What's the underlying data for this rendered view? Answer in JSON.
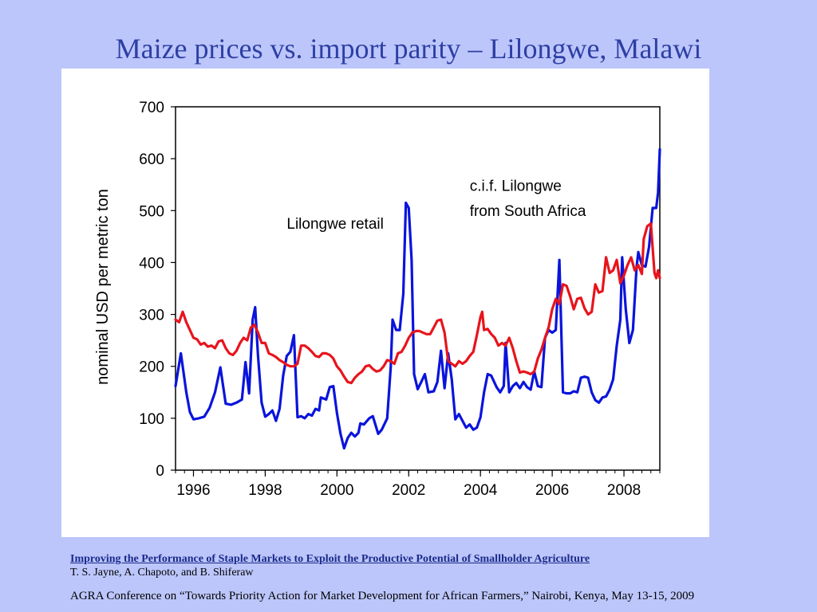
{
  "slide": {
    "title": "Maize prices vs. import parity – Lilongwe, Malawi",
    "footer_citation": "Improving the Performance of Staple Markets to Exploit the Productive Potential of Smallholder Agriculture",
    "footer_authors": "T. S. Jayne, A. Chapoto, and B. Shiferaw",
    "footer_conference": "AGRA Conference on “Towards Priority Action for Market Development for African Farmers,” Nairobi, Kenya, May 13-15, 2009"
  },
  "chart_data": {
    "type": "line",
    "title": "",
    "xlabel": "",
    "ylabel": "nominal USD per metric ton",
    "xlim": [
      1995.5,
      2008.67
    ],
    "ylim": [
      0,
      700
    ],
    "y_ticks": [
      0,
      100,
      200,
      300,
      400,
      500,
      600,
      700
    ],
    "y_tick_labels": [
      "0",
      "100",
      "200",
      "300",
      "400",
      "500",
      "600",
      "700"
    ],
    "x_ticks": [
      1996,
      1998,
      2000,
      2002,
      2004,
      2006,
      2008
    ],
    "x_tick_labels": [
      "1996",
      "1998",
      "2000",
      "2002",
      "2004",
      "2006",
      "2008"
    ],
    "grid": false,
    "legend": "none",
    "annotations": [
      {
        "text": "Lilongwe retail",
        "x": 1998.6,
        "y": 465
      },
      {
        "text": "c.i.f. Lilongwe",
        "x": 2003.7,
        "y": 538
      },
      {
        "text": "from South Africa",
        "x": 2003.7,
        "y": 490
      }
    ],
    "series": [
      {
        "color": "#0a14dc",
        "points": [
          [
            1995.5,
            162
          ],
          [
            1995.65,
            225
          ],
          [
            1995.8,
            150
          ],
          [
            1995.9,
            112
          ],
          [
            1996.0,
            98
          ],
          [
            1996.15,
            100
          ],
          [
            1996.3,
            103
          ],
          [
            1996.45,
            120
          ],
          [
            1996.6,
            150
          ],
          [
            1996.75,
            198
          ],
          [
            1996.9,
            128
          ],
          [
            1997.05,
            126
          ],
          [
            1997.2,
            130
          ],
          [
            1997.35,
            136
          ],
          [
            1997.45,
            208
          ],
          [
            1997.55,
            148
          ],
          [
            1997.65,
            290
          ],
          [
            1997.72,
            314
          ],
          [
            1997.8,
            220
          ],
          [
            1997.9,
            130
          ],
          [
            1998.0,
            103
          ],
          [
            1998.1,
            108
          ],
          [
            1998.2,
            115
          ],
          [
            1998.3,
            95
          ],
          [
            1998.4,
            118
          ],
          [
            1998.5,
            182
          ],
          [
            1998.6,
            220
          ],
          [
            1998.7,
            228
          ],
          [
            1998.8,
            260
          ],
          [
            1998.9,
            102
          ],
          [
            1999.0,
            104
          ],
          [
            1999.1,
            100
          ],
          [
            1999.2,
            108
          ],
          [
            1999.3,
            105
          ],
          [
            1999.4,
            118
          ],
          [
            1999.5,
            115
          ],
          [
            1999.55,
            140
          ],
          [
            1999.7,
            136
          ],
          [
            1999.8,
            160
          ],
          [
            1999.9,
            162
          ],
          [
            2000.0,
            110
          ],
          [
            2000.1,
            70
          ],
          [
            2000.2,
            42
          ],
          [
            2000.3,
            62
          ],
          [
            2000.4,
            72
          ],
          [
            2000.5,
            65
          ],
          [
            2000.6,
            72
          ],
          [
            2000.65,
            90
          ],
          [
            2000.75,
            88
          ],
          [
            2000.9,
            100
          ],
          [
            2001.0,
            104
          ],
          [
            2001.15,
            70
          ],
          [
            2001.25,
            78
          ],
          [
            2001.4,
            100
          ],
          [
            2001.5,
            200
          ],
          [
            2001.55,
            290
          ],
          [
            2001.65,
            270
          ],
          [
            2001.75,
            270
          ],
          [
            2001.85,
            340
          ],
          [
            2001.92,
            515
          ],
          [
            2002.0,
            505
          ],
          [
            2002.08,
            405
          ],
          [
            2002.15,
            185
          ],
          [
            2002.25,
            156
          ],
          [
            2002.35,
            170
          ],
          [
            2002.45,
            185
          ],
          [
            2002.55,
            150
          ],
          [
            2002.7,
            152
          ],
          [
            2002.8,
            170
          ],
          [
            2002.9,
            230
          ],
          [
            2003.0,
            158
          ],
          [
            2003.1,
            225
          ],
          [
            2003.2,
            175
          ],
          [
            2003.3,
            98
          ],
          [
            2003.4,
            108
          ],
          [
            2003.5,
            95
          ],
          [
            2003.6,
            82
          ],
          [
            2003.7,
            88
          ],
          [
            2003.8,
            78
          ],
          [
            2003.9,
            82
          ],
          [
            2004.0,
            102
          ],
          [
            2004.1,
            150
          ],
          [
            2004.2,
            185
          ],
          [
            2004.3,
            182
          ],
          [
            2004.45,
            160
          ],
          [
            2004.55,
            150
          ],
          [
            2004.65,
            162
          ],
          [
            2004.7,
            245
          ],
          [
            2004.8,
            150
          ],
          [
            2004.9,
            162
          ],
          [
            2005.0,
            168
          ],
          [
            2005.1,
            158
          ],
          [
            2005.2,
            170
          ],
          [
            2005.3,
            160
          ],
          [
            2005.4,
            155
          ],
          [
            2005.5,
            190
          ],
          [
            2005.6,
            162
          ],
          [
            2005.7,
            160
          ],
          [
            2005.8,
            255
          ],
          [
            2005.9,
            270
          ],
          [
            2006.0,
            265
          ],
          [
            2006.1,
            270
          ],
          [
            2006.2,
            405
          ],
          [
            2006.3,
            150
          ],
          [
            2006.4,
            148
          ],
          [
            2006.5,
            148
          ],
          [
            2006.6,
            152
          ],
          [
            2006.7,
            150
          ],
          [
            2006.8,
            178
          ],
          [
            2006.9,
            180
          ],
          [
            2007.0,
            178
          ],
          [
            2007.1,
            150
          ],
          [
            2007.2,
            135
          ],
          [
            2007.3,
            130
          ],
          [
            2007.4,
            140
          ],
          [
            2007.5,
            142
          ],
          [
            2007.6,
            155
          ],
          [
            2007.7,
            175
          ],
          [
            2007.8,
            240
          ],
          [
            2007.9,
            290
          ],
          [
            2007.95,
            410
          ],
          [
            2008.05,
            310
          ],
          [
            2008.15,
            245
          ],
          [
            2008.25,
            270
          ],
          [
            2008.35,
            390
          ],
          [
            2008.4,
            420
          ],
          [
            2008.5,
            395
          ],
          [
            2008.6,
            392
          ],
          [
            2008.7,
            430
          ],
          [
            2008.8,
            505
          ],
          [
            2008.9,
            505
          ],
          [
            2008.95,
            535
          ],
          [
            2009.0,
            618
          ]
        ]
      },
      {
        "color": "#e8141c",
        "points": [
          [
            1995.5,
            290
          ],
          [
            1995.6,
            285
          ],
          [
            1995.7,
            305
          ],
          [
            1995.8,
            285
          ],
          [
            1995.9,
            270
          ],
          [
            1996.0,
            255
          ],
          [
            1996.1,
            252
          ],
          [
            1996.2,
            242
          ],
          [
            1996.3,
            245
          ],
          [
            1996.4,
            238
          ],
          [
            1996.5,
            240
          ],
          [
            1996.6,
            235
          ],
          [
            1996.7,
            248
          ],
          [
            1996.8,
            250
          ],
          [
            1996.9,
            235
          ],
          [
            1997.0,
            225
          ],
          [
            1997.1,
            222
          ],
          [
            1997.2,
            230
          ],
          [
            1997.3,
            245
          ],
          [
            1997.4,
            255
          ],
          [
            1997.5,
            250
          ],
          [
            1997.6,
            275
          ],
          [
            1997.7,
            280
          ],
          [
            1997.8,
            265
          ],
          [
            1997.9,
            245
          ],
          [
            1998.0,
            245
          ],
          [
            1998.1,
            225
          ],
          [
            1998.2,
            222
          ],
          [
            1998.3,
            218
          ],
          [
            1998.4,
            212
          ],
          [
            1998.5,
            208
          ],
          [
            1998.6,
            203
          ],
          [
            1998.7,
            200
          ],
          [
            1998.8,
            200
          ],
          [
            1998.9,
            205
          ],
          [
            1999.0,
            240
          ],
          [
            1999.1,
            240
          ],
          [
            1999.2,
            235
          ],
          [
            1999.3,
            228
          ],
          [
            1999.4,
            220
          ],
          [
            1999.5,
            218
          ],
          [
            1999.6,
            225
          ],
          [
            1999.7,
            225
          ],
          [
            1999.8,
            222
          ],
          [
            1999.9,
            215
          ],
          [
            2000.0,
            200
          ],
          [
            2000.1,
            192
          ],
          [
            2000.2,
            180
          ],
          [
            2000.3,
            170
          ],
          [
            2000.4,
            168
          ],
          [
            2000.5,
            178
          ],
          [
            2000.6,
            185
          ],
          [
            2000.7,
            190
          ],
          [
            2000.8,
            200
          ],
          [
            2000.9,
            202
          ],
          [
            2001.0,
            195
          ],
          [
            2001.1,
            190
          ],
          [
            2001.2,
            192
          ],
          [
            2001.3,
            200
          ],
          [
            2001.4,
            212
          ],
          [
            2001.5,
            210
          ],
          [
            2001.6,
            205
          ],
          [
            2001.7,
            225
          ],
          [
            2001.8,
            228
          ],
          [
            2001.9,
            240
          ],
          [
            2002.0,
            255
          ],
          [
            2002.1,
            265
          ],
          [
            2002.2,
            268
          ],
          [
            2002.3,
            268
          ],
          [
            2002.4,
            265
          ],
          [
            2002.5,
            262
          ],
          [
            2002.6,
            262
          ],
          [
            2002.7,
            275
          ],
          [
            2002.8,
            288
          ],
          [
            2002.9,
            290
          ],
          [
            2003.0,
            265
          ],
          [
            2003.1,
            210
          ],
          [
            2003.2,
            205
          ],
          [
            2003.3,
            200
          ],
          [
            2003.4,
            210
          ],
          [
            2003.5,
            205
          ],
          [
            2003.6,
            210
          ],
          [
            2003.7,
            220
          ],
          [
            2003.8,
            228
          ],
          [
            2003.9,
            260
          ],
          [
            2004.0,
            295
          ],
          [
            2004.05,
            305
          ],
          [
            2004.1,
            270
          ],
          [
            2004.2,
            272
          ],
          [
            2004.3,
            262
          ],
          [
            2004.4,
            255
          ],
          [
            2004.5,
            240
          ],
          [
            2004.6,
            245
          ],
          [
            2004.7,
            240
          ],
          [
            2004.8,
            255
          ],
          [
            2004.9,
            235
          ],
          [
            2005.0,
            210
          ],
          [
            2005.1,
            188
          ],
          [
            2005.2,
            190
          ],
          [
            2005.3,
            188
          ],
          [
            2005.4,
            185
          ],
          [
            2005.5,
            190
          ],
          [
            2005.6,
            215
          ],
          [
            2005.7,
            232
          ],
          [
            2005.8,
            255
          ],
          [
            2005.9,
            275
          ],
          [
            2006.0,
            310
          ],
          [
            2006.1,
            330
          ],
          [
            2006.2,
            320
          ],
          [
            2006.3,
            358
          ],
          [
            2006.4,
            355
          ],
          [
            2006.5,
            335
          ],
          [
            2006.6,
            310
          ],
          [
            2006.7,
            330
          ],
          [
            2006.8,
            332
          ],
          [
            2006.9,
            312
          ],
          [
            2007.0,
            300
          ],
          [
            2007.1,
            305
          ],
          [
            2007.2,
            358
          ],
          [
            2007.3,
            342
          ],
          [
            2007.4,
            345
          ],
          [
            2007.5,
            410
          ],
          [
            2007.6,
            380
          ],
          [
            2007.7,
            385
          ],
          [
            2007.8,
            405
          ],
          [
            2007.9,
            360
          ],
          [
            2008.0,
            375
          ],
          [
            2008.1,
            395
          ],
          [
            2008.2,
            410
          ],
          [
            2008.3,
            385
          ],
          [
            2008.4,
            395
          ],
          [
            2008.5,
            378
          ],
          [
            2008.55,
            445
          ],
          [
            2008.65,
            470
          ],
          [
            2008.75,
            475
          ],
          [
            2008.85,
            380
          ],
          [
            2008.9,
            370
          ],
          [
            2008.95,
            385
          ],
          [
            2009.0,
            370
          ]
        ]
      }
    ]
  }
}
